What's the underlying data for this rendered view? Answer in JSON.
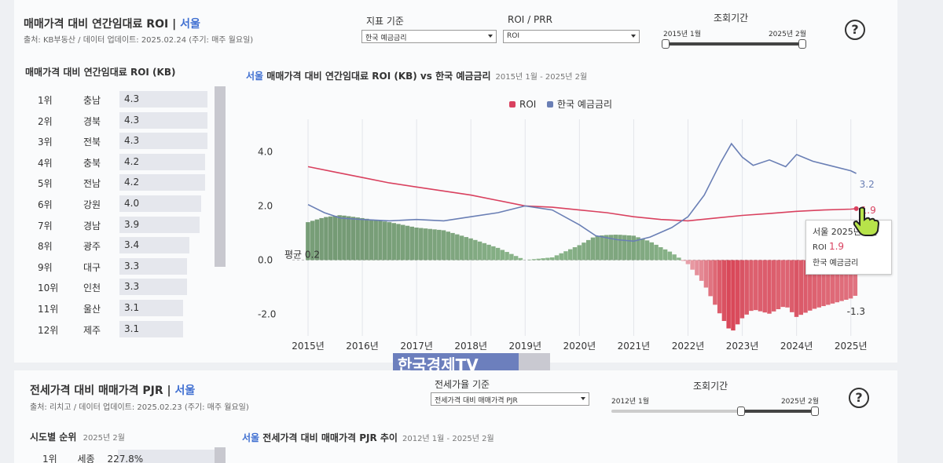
{
  "top": {
    "title_main": "매매가격 대비 연간임대료 ROI",
    "title_sep": "|",
    "title_city": "서울",
    "source": "출처: KB부동산  / 데이터 업데이트: 2025.02.24 (주기: 매주 월요일)",
    "indicator_label": "지표 기준",
    "indicator_value": "한국 예금금리",
    "roi_label": "ROI / PRR",
    "roi_value": "ROI",
    "period_label": "조회기간",
    "period_start": "2015년 1월",
    "period_end": "2025년 2월",
    "help_label": "?",
    "rank_title": "매매가격 대비 연간임대료 ROI (KB)",
    "ranks": [
      {
        "rank": "1위",
        "region": "충남",
        "value": "4.3",
        "v": 4.3
      },
      {
        "rank": "2위",
        "region": "경북",
        "value": "4.3",
        "v": 4.3
      },
      {
        "rank": "3위",
        "region": "전북",
        "value": "4.3",
        "v": 4.3
      },
      {
        "rank": "4위",
        "region": "충북",
        "value": "4.2",
        "v": 4.2
      },
      {
        "rank": "5위",
        "region": "전남",
        "value": "4.2",
        "v": 4.2
      },
      {
        "rank": "6위",
        "region": "강원",
        "value": "4.0",
        "v": 4.0
      },
      {
        "rank": "7위",
        "region": "경남",
        "value": "3.9",
        "v": 3.9
      },
      {
        "rank": "8위",
        "region": "광주",
        "value": "3.4",
        "v": 3.4
      },
      {
        "rank": "9위",
        "region": "대구",
        "value": "3.3",
        "v": 3.3
      },
      {
        "rank": "10위",
        "region": "인천",
        "value": "3.3",
        "v": 3.3
      },
      {
        "rank": "11위",
        "region": "울산",
        "value": "3.1",
        "v": 3.1
      },
      {
        "rank": "12위",
        "region": "제주",
        "value": "3.1",
        "v": 3.1
      }
    ],
    "chart_title_city": "서울",
    "chart_title_rest": "매매가격 대비 연간임대료 ROI (KB) vs 한국 예금금리",
    "chart_title_period": "2015년 1월 - 2025년 2월",
    "tooltip": {
      "head": "서울 2025년 2월",
      "roi_label": "ROI",
      "roi_value": "1.9",
      "rate_label": "한국 예금금리"
    }
  },
  "chart_data": {
    "type": "line",
    "xlabel": "",
    "ylabel": "",
    "x_ticks": [
      "2015년",
      "2016년",
      "2017년",
      "2018년",
      "2019년",
      "2020년",
      "2021년",
      "2022년",
      "2023년",
      "2024년",
      "2025년"
    ],
    "y_ticks": [
      "4.0",
      "2.0",
      "0.0",
      "-2.0"
    ],
    "ylim": [
      -2.8,
      5.2
    ],
    "legend": [
      {
        "name": "ROI",
        "color": "#d9415f"
      },
      {
        "name": "한국 예금금리",
        "color": "#6a7fb5"
      }
    ],
    "avg_label": "평균",
    "avg_value": "0.2",
    "end_labels": {
      "rate": "3.2",
      "roi": "1.9",
      "diff": "-1.3"
    },
    "series": [
      {
        "name": "ROI",
        "color": "#d9415f",
        "x": [
          2015.0,
          2015.5,
          2016.0,
          2016.5,
          2017.0,
          2017.5,
          2018.0,
          2018.5,
          2019.0,
          2019.5,
          2020.0,
          2020.5,
          2021.0,
          2021.5,
          2022.0,
          2022.5,
          2023.0,
          2023.5,
          2024.0,
          2024.5,
          2025.0,
          2025.1
        ],
        "values": [
          3.45,
          3.25,
          3.05,
          2.85,
          2.7,
          2.55,
          2.4,
          2.2,
          2.0,
          1.95,
          1.85,
          1.75,
          1.6,
          1.5,
          1.45,
          1.55,
          1.65,
          1.72,
          1.8,
          1.85,
          1.88,
          1.9
        ]
      },
      {
        "name": "한국 예금금리",
        "color": "#6a7fb5",
        "x": [
          2015.0,
          2015.3,
          2015.6,
          2016.0,
          2016.5,
          2017.0,
          2017.5,
          2018.0,
          2018.5,
          2019.0,
          2019.5,
          2020.0,
          2020.3,
          2020.7,
          2021.0,
          2021.3,
          2021.7,
          2022.0,
          2022.3,
          2022.6,
          2022.8,
          2023.0,
          2023.2,
          2023.5,
          2023.8,
          2024.0,
          2024.3,
          2024.6,
          2025.0,
          2025.1
        ],
        "values": [
          2.05,
          1.75,
          1.55,
          1.5,
          1.45,
          1.5,
          1.45,
          1.6,
          1.75,
          2.0,
          1.85,
          1.3,
          0.9,
          0.75,
          0.7,
          0.85,
          1.2,
          1.6,
          2.4,
          3.6,
          4.3,
          3.8,
          3.5,
          3.7,
          3.45,
          3.9,
          3.65,
          3.5,
          3.3,
          3.2
        ]
      }
    ]
  },
  "bottom": {
    "title_main": "전세가격 대비 매매가격 PJR",
    "title_sep": "|",
    "title_city": "서울",
    "source": "출처: 리치고 / 데이터 업데이트: 2025.02.23 (주기: 매주 월요일)",
    "jeonse_label": "전세가율 기준",
    "jeonse_value": "전세가격 대비 매매가격 PJR",
    "period_label": "조회기간",
    "period_start": "2012년 1월",
    "period_end": "2025년 2월",
    "help_label": "?",
    "rank_title": "시도별 순위",
    "rank_period": "2025년 2월",
    "first_rank": "1위",
    "first_region": "세종",
    "first_value": "227.8%",
    "chart_title_city": "서울",
    "chart_title_rest": "전세가격 대비 매매가격 PJR 추이",
    "chart_title_period": "2012년 1월 - 2025년 2월"
  },
  "watermark": {
    "text": "한국경제TV"
  }
}
